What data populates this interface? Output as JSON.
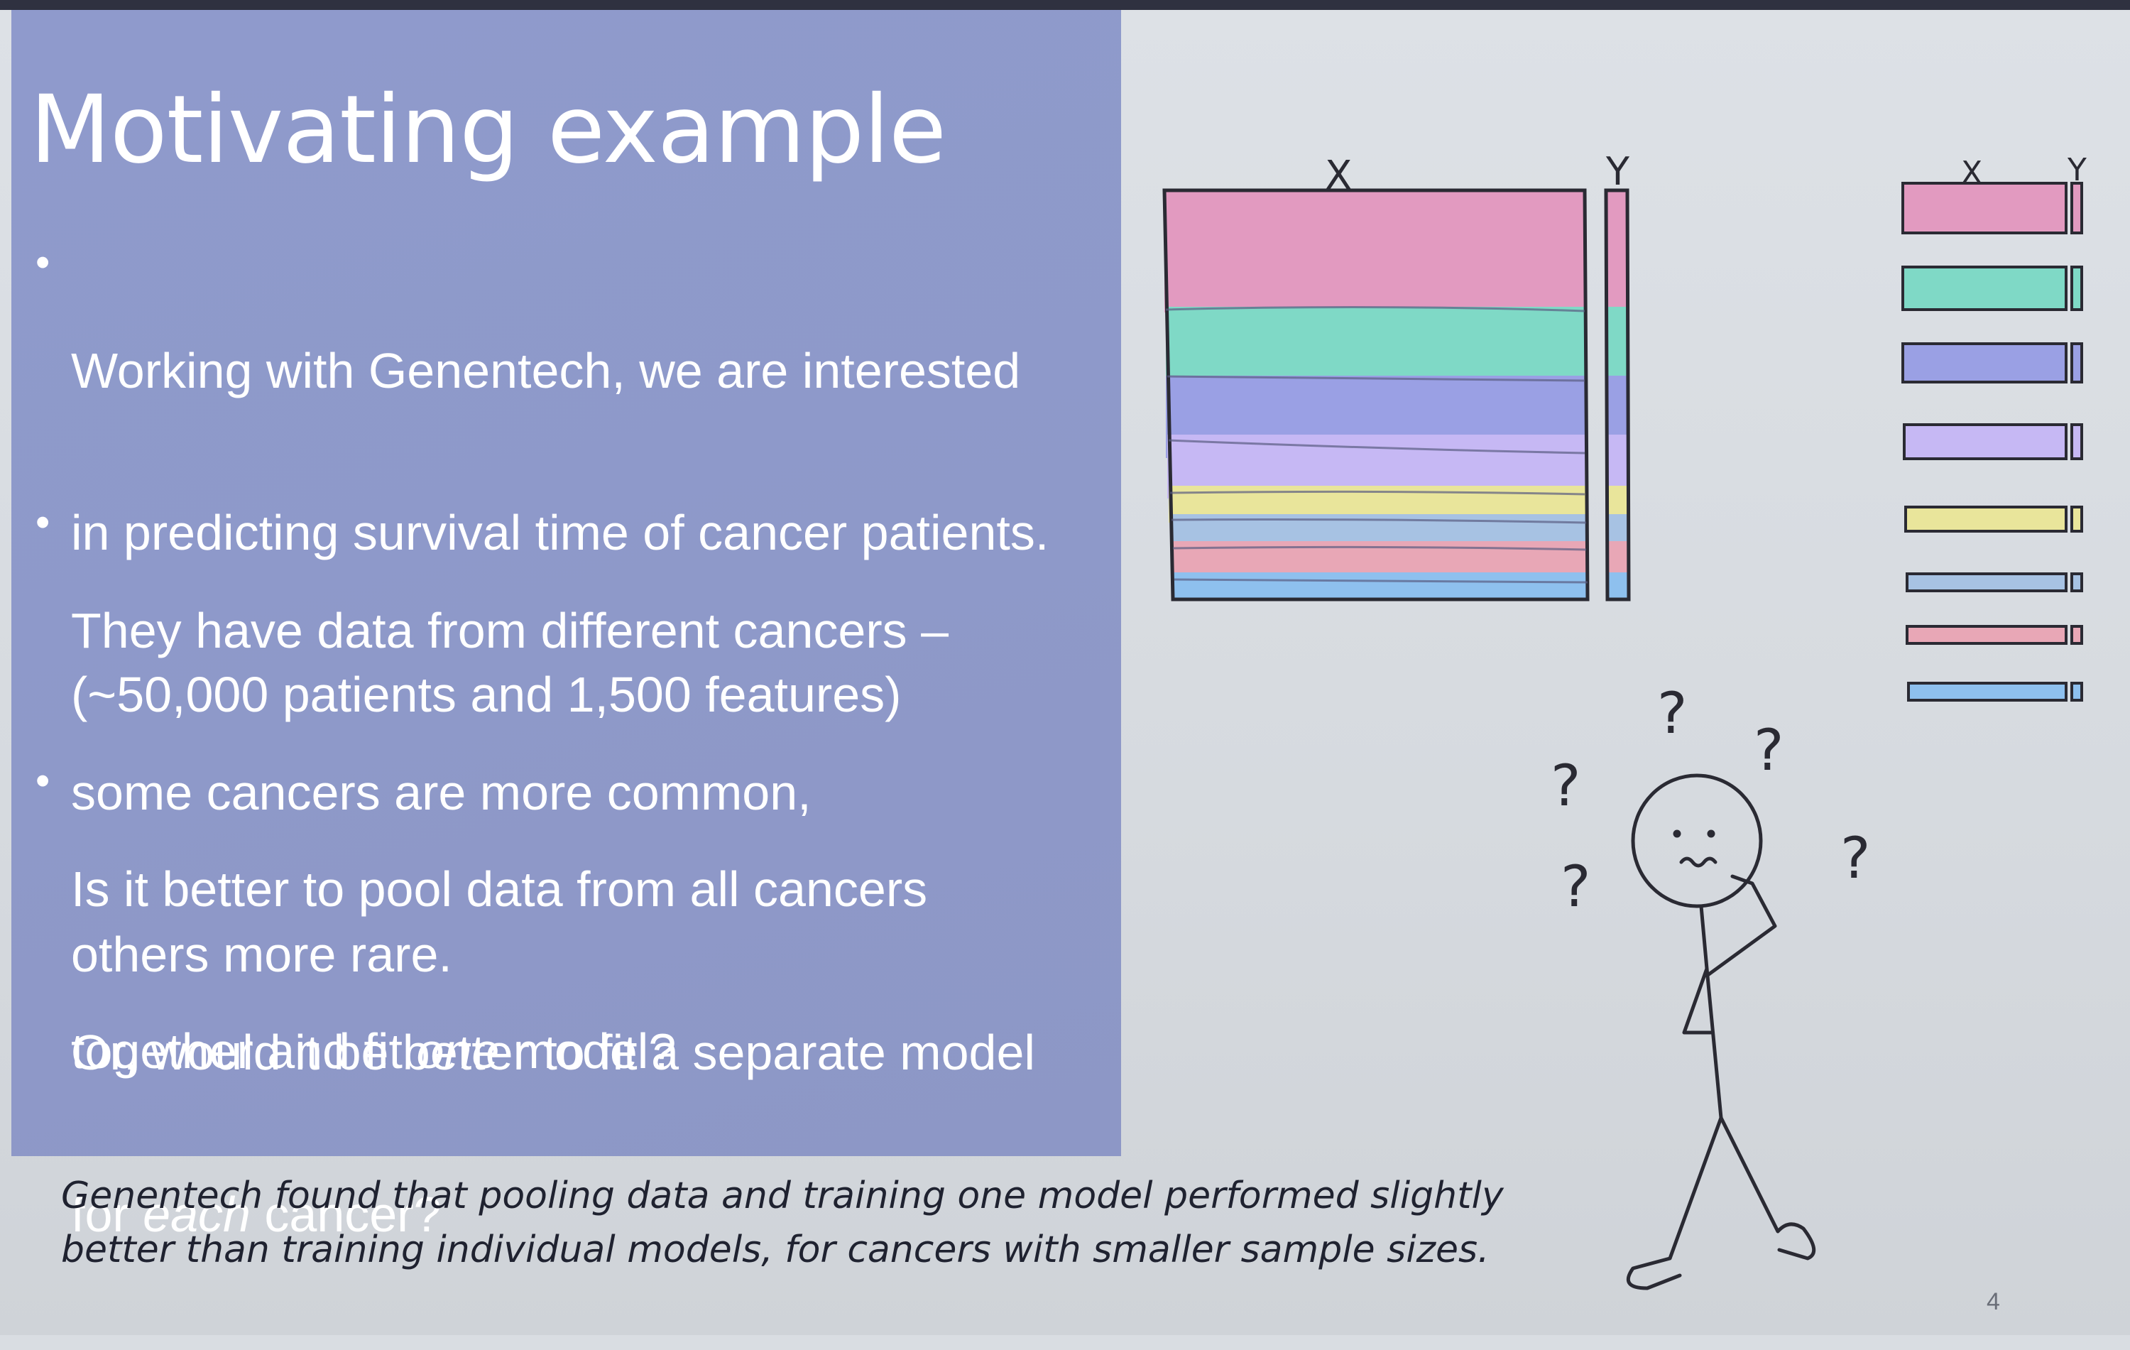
{
  "slide": {
    "title": "Motivating example",
    "bullets": [
      {
        "lines": [
          "Working with Genentech, we are interested",
          "in predicting survival time  of cancer patients.",
          "(~50,000 patients and 1,500 features)"
        ]
      },
      {
        "lines": [
          "They have data from different cancers –",
          "some cancers are more common,",
          "others more rare."
        ]
      },
      {
        "lines": [
          "Is it better to pool data from all cancers",
          "together and fit one model?"
        ],
        "italic_word_line2": "one"
      },
      {
        "lines": [
          "Or, would it be better to fit a separate model",
          "for each cancer?"
        ],
        "italic_word_line2": "each"
      }
    ],
    "footer_lines": [
      "Genentech found that pooling data and training one model performed slightly",
      "better than training individual models, for cancers with smaller sample sizes."
    ],
    "slide_number": "4"
  },
  "diagram": {
    "pooled_label_x": "X",
    "pooled_label_y": "Y",
    "separate_label_x": "X",
    "separate_label_y": "Y",
    "question_mark": "?",
    "cancer_colors": [
      "#e29ac0",
      "#7fd9c6",
      "#9aa0e4",
      "#c6b8f4",
      "#e9e59b",
      "#a7c2e3",
      "#e8a7b6",
      "#8ec0ee"
    ]
  }
}
